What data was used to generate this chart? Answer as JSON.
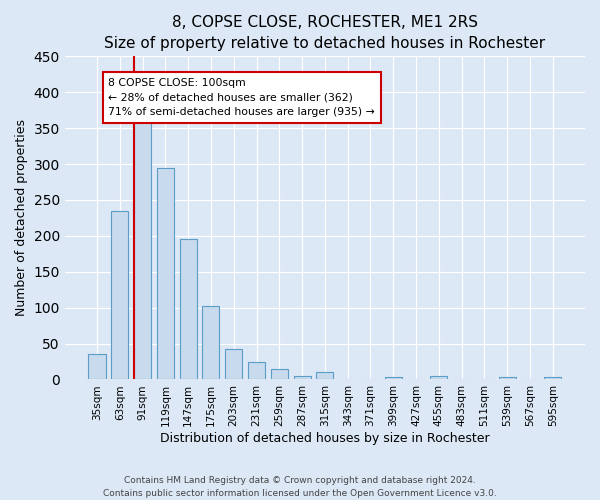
{
  "title": "8, COPSE CLOSE, ROCHESTER, ME1 2RS",
  "subtitle": "Size of property relative to detached houses in Rochester",
  "xlabel": "Distribution of detached houses by size in Rochester",
  "ylabel": "Number of detached properties",
  "bar_values": [
    36,
    235,
    365,
    295,
    196,
    102,
    43,
    24,
    14,
    5,
    11,
    1,
    0,
    4,
    0,
    5,
    0,
    0,
    3,
    0,
    3
  ],
  "bar_labels": [
    "35sqm",
    "63sqm",
    "91sqm",
    "119sqm",
    "147sqm",
    "175sqm",
    "203sqm",
    "231sqm",
    "259sqm",
    "287sqm",
    "315sqm",
    "343sqm",
    "371sqm",
    "399sqm",
    "427sqm",
    "455sqm",
    "483sqm",
    "511sqm",
    "539sqm",
    "567sqm",
    "595sqm"
  ],
  "bar_color": "#c8daed",
  "bar_edge_color": "#5b9dc8",
  "vline_x_index": 2,
  "vline_color": "#cc0000",
  "annotation_title": "8 COPSE CLOSE: 100sqm",
  "annotation_line1": "← 28% of detached houses are smaller (362)",
  "annotation_line2": "71% of semi-detached houses are larger (935) →",
  "annotation_box_facecolor": "#ffffff",
  "annotation_box_edgecolor": "#cc0000",
  "ylim": [
    0,
    450
  ],
  "yticks": [
    0,
    50,
    100,
    150,
    200,
    250,
    300,
    350,
    400,
    450
  ],
  "footnote1": "Contains HM Land Registry data © Crown copyright and database right 2024.",
  "footnote2": "Contains public sector information licensed under the Open Government Licence v3.0.",
  "background_color": "#dce8f5",
  "plot_background": "#dce8f5",
  "title_fontsize": 11,
  "subtitle_fontsize": 9,
  "xlabel_fontsize": 9,
  "ylabel_fontsize": 9,
  "tick_fontsize": 7.5,
  "footnote_fontsize": 6.5
}
